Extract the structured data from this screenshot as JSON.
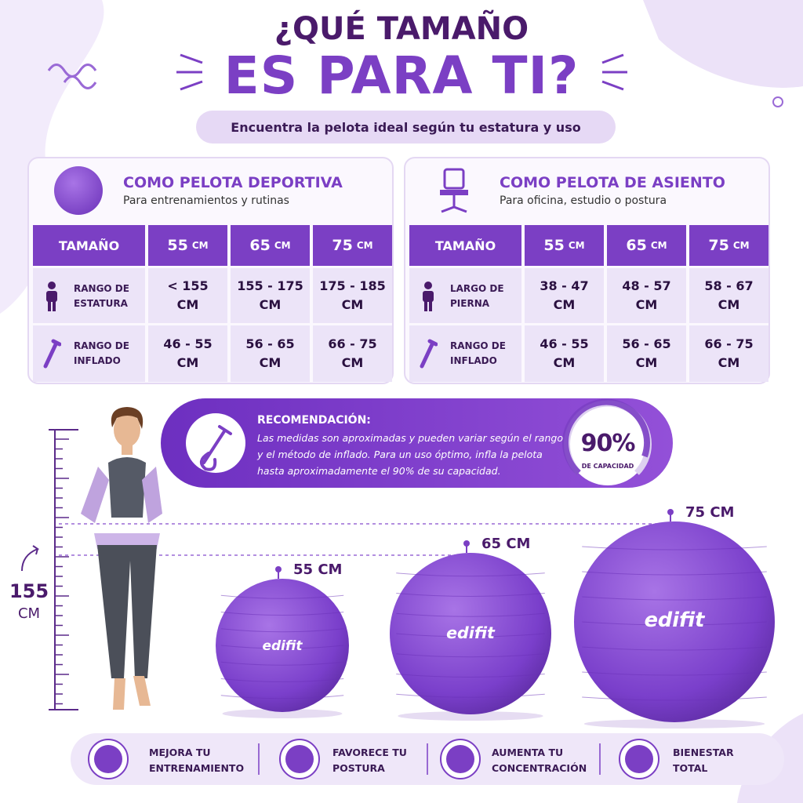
{
  "header": {
    "title_line1": "¿QUÉ TAMAÑO",
    "title_line2": "ES PARA TI?",
    "subtitle": "Encuentra la pelota ideal según tu estatura y uso"
  },
  "panels": [
    {
      "title": "COMO PELOTA DEPORTIVA",
      "subtitle": "Para entrenamientos y rutinas",
      "table": {
        "header_label": "TAMAÑO",
        "sizes": [
          {
            "number": "55",
            "unit": "CM"
          },
          {
            "number": "65",
            "unit": "CM"
          },
          {
            "number": "75",
            "unit": "CM"
          }
        ],
        "rows": [
          {
            "label": [
              "RANGO DE",
              "ESTATURA"
            ],
            "cells": [
              [
                "< 155",
                "CM"
              ],
              [
                "155 - 175",
                "CM"
              ],
              [
                "175 - 185",
                "CM"
              ]
            ]
          },
          {
            "label": [
              "RANGO DE",
              "INFLADO"
            ],
            "cells": [
              [
                "46 - 55",
                "CM"
              ],
              [
                "56 - 65",
                "CM"
              ],
              [
                "66 - 75",
                "CM"
              ]
            ]
          }
        ]
      }
    },
    {
      "title": "COMO PELOTA DE ASIENTO",
      "subtitle": "Para oficina, estudio o postura",
      "table": {
        "header_label": "TAMAÑO",
        "sizes": [
          {
            "number": "55",
            "unit": "CM"
          },
          {
            "number": "65",
            "unit": "CM"
          },
          {
            "number": "75",
            "unit": "CM"
          }
        ],
        "rows": [
          {
            "label": [
              "LARGO DE",
              "PIERNA"
            ],
            "cells": [
              [
                "38 - 47",
                "CM"
              ],
              [
                "48 - 57",
                "CM"
              ],
              [
                "58 - 67",
                "CM"
              ]
            ]
          },
          {
            "label": [
              "RANGO DE",
              "INFLADO"
            ],
            "cells": [
              [
                "46 - 55",
                "CM"
              ],
              [
                "56 - 65",
                "CM"
              ],
              [
                "66 - 75",
                "CM"
              ]
            ]
          }
        ]
      }
    }
  ],
  "recommendation": {
    "title": "RECOMENDACIÓN:",
    "lines": [
      "Las medidas son aproximadas y pueden variar según el rango",
      "y el método de inflado. Para un uso óptimo, infla la pelota",
      "hasta aproximadamente el 90% de su capacidad."
    ],
    "gauge": {
      "value": "90%",
      "label": "DE CAPACIDAD"
    }
  },
  "height_marker": {
    "number": "155",
    "unit": "CM"
  },
  "balls": [
    {
      "label": "55 CM",
      "brand": "edifit"
    },
    {
      "label": "65 CM",
      "brand": "edifit"
    },
    {
      "label": "75 CM",
      "brand": "edifit"
    }
  ],
  "features": [
    [
      "MEJORA TU",
      "ENTRENAMIENTO"
    ],
    [
      "FAVORECE TU",
      "POSTURA"
    ],
    [
      "AUMENTA TU",
      "CONCENTRACIÓN"
    ],
    [
      "BIENESTAR",
      "TOTAL"
    ]
  ]
}
